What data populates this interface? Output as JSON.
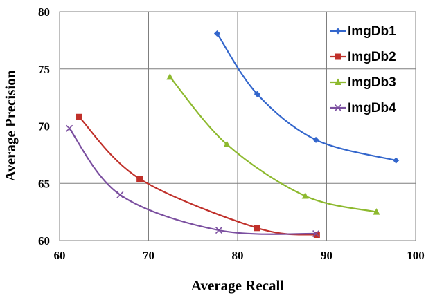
{
  "chart_data": {
    "type": "line",
    "title": "",
    "xlabel": "Average Recall",
    "ylabel": "Average Precision",
    "xlim": [
      60,
      100
    ],
    "ylim": [
      60,
      80
    ],
    "xticks": [
      60,
      70,
      80,
      90,
      100
    ],
    "yticks": [
      60,
      65,
      70,
      75,
      80
    ],
    "grid": true,
    "smooth": true,
    "legend_position": "top-right",
    "series": [
      {
        "name": "ImgDb1",
        "color": "#3366CC",
        "marker": "diamond",
        "x": [
          77.7,
          82.2,
          88.8,
          97.8
        ],
        "y": [
          78.1,
          72.8,
          68.8,
          67.0
        ]
      },
      {
        "name": "ImgDb2",
        "color": "#C0302A",
        "marker": "square",
        "x": [
          62.2,
          69.0,
          82.2,
          88.9
        ],
        "y": [
          70.8,
          65.4,
          61.1,
          60.5
        ]
      },
      {
        "name": "ImgDb3",
        "color": "#8DB92E",
        "marker": "triangle",
        "x": [
          72.4,
          78.8,
          87.6,
          95.6
        ],
        "y": [
          74.3,
          68.4,
          63.9,
          62.5
        ]
      },
      {
        "name": "ImgDb4",
        "color": "#7B4FA0",
        "marker": "x",
        "x": [
          61.1,
          66.8,
          77.9,
          88.8
        ],
        "y": [
          69.8,
          64.0,
          60.9,
          60.6
        ]
      }
    ]
  }
}
